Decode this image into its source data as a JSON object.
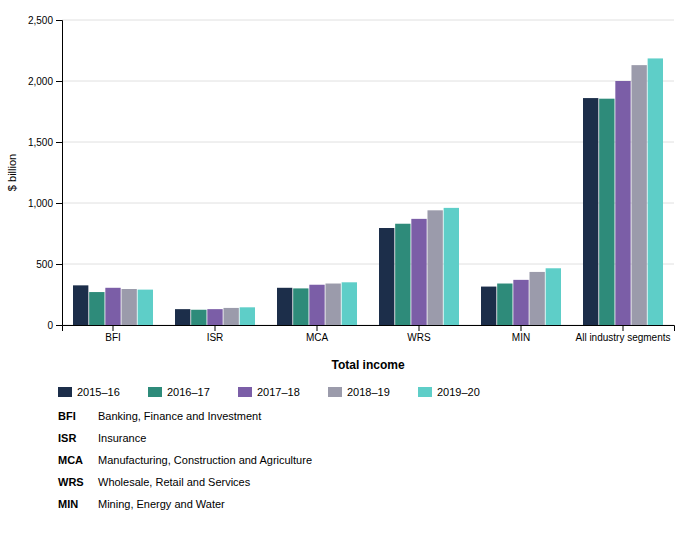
{
  "chart_data": {
    "type": "bar",
    "xlabel": "Total income",
    "ylabel": "$ billion",
    "categories": [
      "BFI",
      "ISR",
      "MCA",
      "WRS",
      "MIN",
      "All industry segments"
    ],
    "series": [
      {
        "name": "2015–16",
        "color": "#1c2e4a",
        "values": [
          325,
          130,
          305,
          795,
          315,
          1860
        ]
      },
      {
        "name": "2016–17",
        "color": "#2e8b7a",
        "values": [
          270,
          125,
          300,
          830,
          340,
          1855
        ]
      },
      {
        "name": "2017–18",
        "color": "#7b5ea7",
        "values": [
          305,
          130,
          330,
          870,
          370,
          2000
        ]
      },
      {
        "name": "2018–19",
        "color": "#9b9bab",
        "values": [
          295,
          140,
          340,
          940,
          435,
          2130
        ]
      },
      {
        "name": "2019–20",
        "color": "#5ecec8",
        "values": [
          290,
          145,
          350,
          960,
          465,
          2185
        ]
      }
    ],
    "ylim": [
      0,
      2500
    ],
    "yticks": [
      0,
      500,
      {
        "value": 1000,
        "label": "1,000"
      },
      {
        "value": 1500,
        "label": "1,500"
      },
      {
        "value": 2000,
        "label": "2,000"
      },
      {
        "value": 2500,
        "label": "2,500"
      }
    ],
    "grid": true,
    "legend": "bottom",
    "annotations": [
      [
        "BFI",
        "Banking, Finance and Investment"
      ],
      [
        "ISR",
        "Insurance"
      ],
      [
        "MCA",
        "Manufacturing, Construction and Agriculture"
      ],
      [
        "WRS",
        "Wholesale, Retail and Services"
      ],
      [
        "MIN",
        "Mining, Energy and Water"
      ]
    ]
  }
}
